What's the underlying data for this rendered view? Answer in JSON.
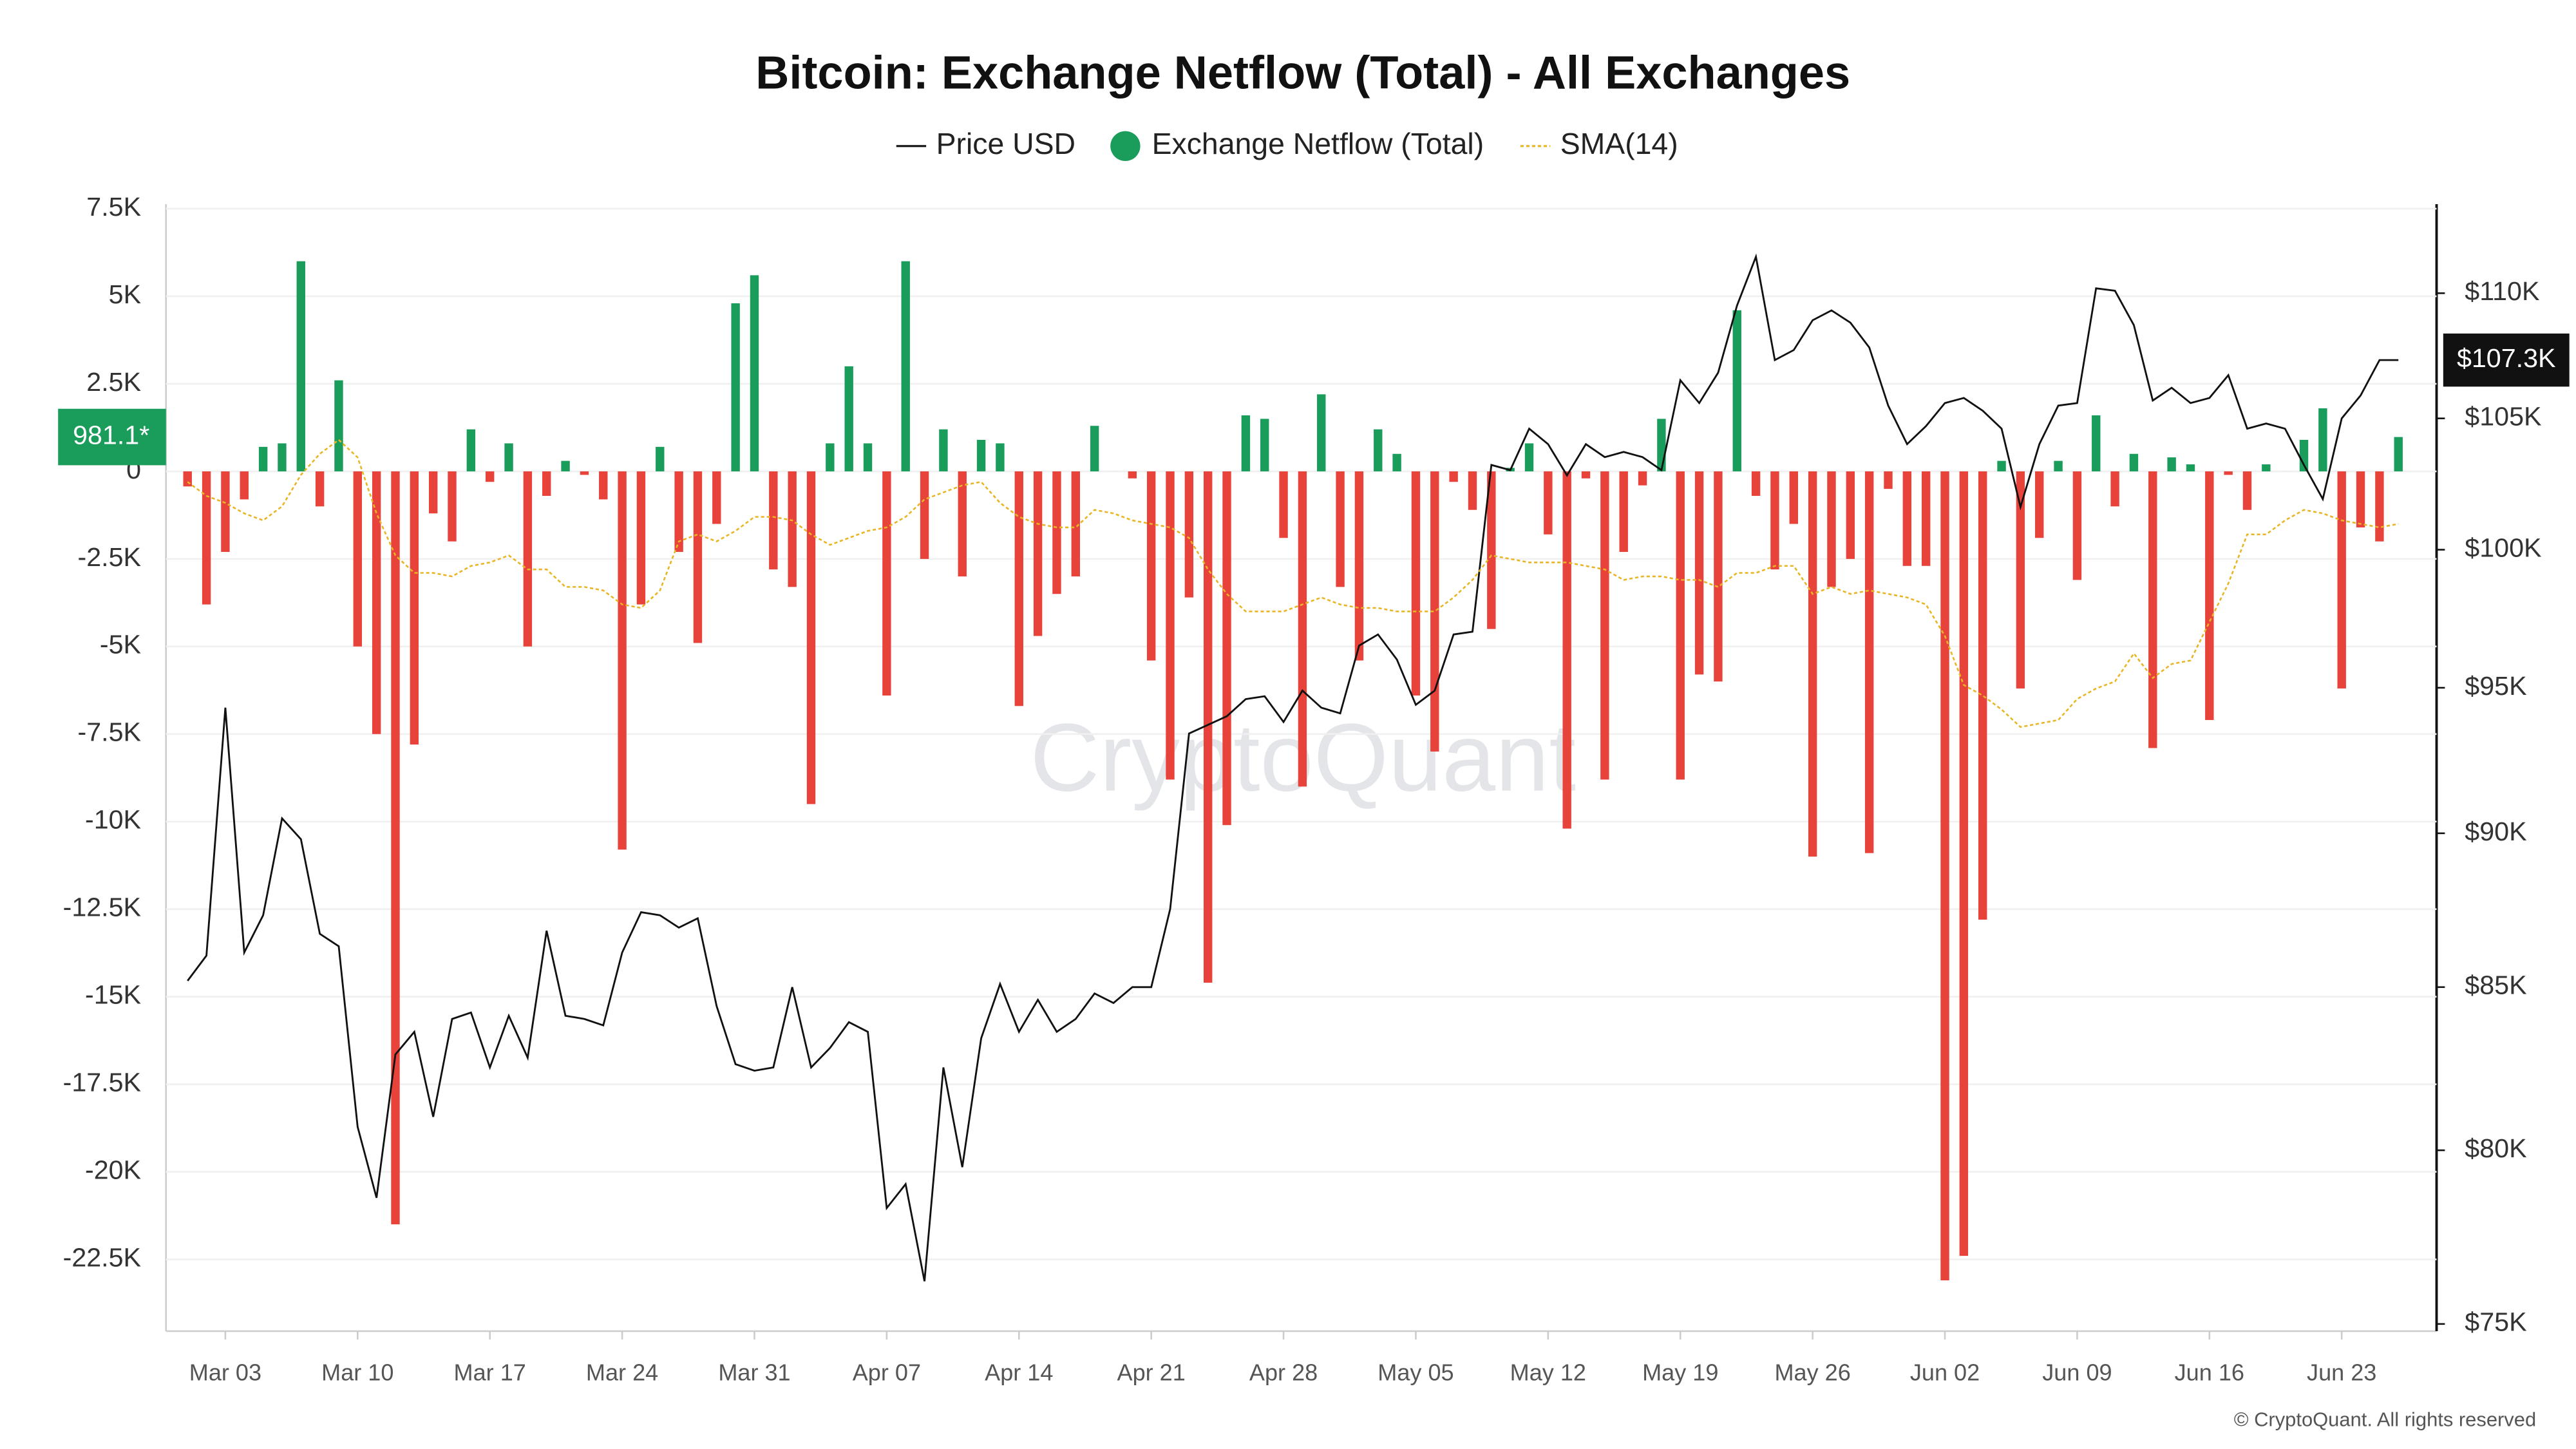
{
  "chart_data": {
    "type": "bar",
    "title": "Bitcoin: Exchange Netflow (Total) - All Exchanges",
    "watermark": "CryptoQuant",
    "copyright": "© CryptoQuant. All rights reserved",
    "categories": [
      null,
      null,
      "Mar 03",
      null,
      null,
      null,
      null,
      null,
      null,
      "Mar 10",
      null,
      null,
      null,
      null,
      null,
      null,
      "Mar 17",
      null,
      null,
      null,
      null,
      null,
      null,
      "Mar 24",
      null,
      null,
      null,
      null,
      null,
      null,
      "Mar 31",
      null,
      null,
      null,
      null,
      null,
      null,
      "Apr 07",
      null,
      null,
      null,
      null,
      null,
      null,
      "Apr 14",
      null,
      null,
      null,
      null,
      null,
      null,
      "Apr 21",
      null,
      null,
      null,
      null,
      null,
      null,
      "Apr 28",
      null,
      null,
      null,
      null,
      null,
      null,
      "May 05",
      null,
      null,
      null,
      null,
      null,
      null,
      "May 12",
      null,
      null,
      null,
      null,
      null,
      null,
      "May 19",
      null,
      null,
      null,
      null,
      null,
      null,
      "May 26",
      null,
      null,
      null,
      null,
      null,
      null,
      "Jun 02",
      null,
      null,
      null,
      null,
      null,
      null,
      "Jun 09",
      null,
      null,
      null,
      null,
      null,
      null,
      "Jun 16",
      null,
      null,
      null,
      null,
      null,
      null,
      "Jun 23",
      null,
      null,
      null
    ],
    "ylim": [
      -24550,
      7630
    ],
    "yticks": [
      {
        "value": 7500,
        "label": "7.5K"
      },
      {
        "value": 5000,
        "label": "5K"
      },
      {
        "value": 2500,
        "label": "2.5K"
      },
      0,
      {
        "value": -2500,
        "label": "-2.5K"
      },
      {
        "value": -5000,
        "label": "-5K"
      },
      {
        "value": -7500,
        "label": "-7.5K"
      },
      {
        "value": -10000,
        "label": "-10K"
      },
      {
        "value": -12500,
        "label": "-12.5K"
      },
      {
        "value": -15000,
        "label": "-15K"
      },
      {
        "value": -17500,
        "label": "-17.5K"
      },
      {
        "value": -20000,
        "label": "-20K"
      },
      {
        "value": -22500,
        "label": "-22.5K"
      }
    ],
    "y2lim": [
      74800,
      113700
    ],
    "y2log": true,
    "y2ticks": [
      {
        "value": 75000,
        "label": "$75K"
      },
      {
        "value": 80000,
        "label": "$80K"
      },
      {
        "value": 85000,
        "label": "$85K"
      },
      {
        "value": 90000,
        "label": "$90K"
      },
      {
        "value": 95000,
        "label": "$95K"
      },
      {
        "value": 100000,
        "label": "$100K"
      },
      {
        "value": 105000,
        "label": "$105K"
      },
      {
        "value": 110000,
        "label": "$110K"
      }
    ],
    "grid": true,
    "legend": "top",
    "series": [
      {
        "name": "Price USD",
        "type": "line",
        "axis": "y2",
        "color": "#111111",
        "current_label": "$107.3K",
        "values": [
          85200,
          86000,
          94300,
          86100,
          87300,
          90500,
          89800,
          86700,
          86300,
          80700,
          78600,
          82900,
          83600,
          81000,
          84000,
          84200,
          82500,
          84100,
          82800,
          86800,
          84100,
          84000,
          83800,
          86100,
          87400,
          87300,
          86900,
          87200,
          84400,
          82600,
          82400,
          82500,
          85000,
          82500,
          83100,
          83900,
          83600,
          78300,
          79000,
          76200,
          82500,
          79500,
          83400,
          85100,
          83600,
          84600,
          83600,
          84000,
          84800,
          84500,
          85000,
          85000,
          87500,
          93400,
          93700,
          94000,
          94600,
          94700,
          93800,
          94900,
          94300,
          94100,
          96500,
          96900,
          96000,
          94400,
          94900,
          96900,
          97000,
          103200,
          103000,
          104600,
          104000,
          102800,
          104000,
          103500,
          103700,
          103500,
          103000,
          106500,
          105600,
          106800,
          109500,
          111500,
          107300,
          107700,
          108900,
          109300,
          108800,
          107800,
          105500,
          104000,
          104700,
          105600,
          105800,
          105300,
          104600,
          101600,
          104000,
          105500,
          105600,
          110200,
          110100,
          108700,
          105700,
          106200,
          105600,
          105800,
          106700,
          104600,
          104800,
          104600,
          103200,
          101900,
          105000,
          105900,
          107300,
          107300
        ]
      },
      {
        "name": "Exchange Netflow (Total)",
        "type": "bar",
        "positive_color": "#1a9c5b",
        "negative_color": "#e8433a",
        "color": "#1a9c5b",
        "current_label": "981.1*",
        "values": [
          -430,
          -3800,
          -2300,
          -800,
          700,
          800,
          6000,
          -1000,
          2600,
          -5000,
          -7500,
          -21500,
          -7800,
          -1200,
          -2000,
          1200,
          -300,
          800,
          -5000,
          -700,
          300,
          -100,
          -800,
          -10800,
          -3800,
          700,
          -2300,
          -4900,
          -1500,
          4800,
          5600,
          -2800,
          -3300,
          -9500,
          800,
          3000,
          800,
          -6400,
          6000,
          -2500,
          1200,
          -3000,
          900,
          800,
          -6700,
          -4700,
          -3500,
          -3000,
          1300,
          0,
          -200,
          -5400,
          -8800,
          -3600,
          -14600,
          -10100,
          1600,
          1500,
          -1900,
          -9000,
          2200,
          -3300,
          -5400,
          1200,
          500,
          -6400,
          -8000,
          -300,
          -1100,
          -4500,
          100,
          800,
          -1800,
          -10200,
          -200,
          -8800,
          -2300,
          -400,
          1500,
          -8800,
          -5800,
          -6000,
          4600,
          -700,
          -2800,
          -1500,
          -11000,
          -3300,
          -2500,
          -10900,
          -500,
          -2700,
          -2700,
          -23100,
          -22400,
          -12800,
          300,
          -6200,
          -1900,
          300,
          -3100,
          1600,
          -1000,
          500,
          -7900,
          400,
          200,
          -7100,
          -100,
          -1100,
          200,
          0,
          900,
          1800,
          -6200,
          -1600,
          -2000,
          981.1
        ]
      },
      {
        "name": "SMA(14)",
        "type": "line",
        "dashed": true,
        "color": "#e8b524",
        "values": [
          -300,
          -700,
          -900,
          -1200,
          -1400,
          -1000,
          -100,
          500,
          900,
          400,
          -1200,
          -2400,
          -2900,
          -2900,
          -3000,
          -2700,
          -2600,
          -2400,
          -2800,
          -2800,
          -3300,
          -3300,
          -3400,
          -3800,
          -3900,
          -3400,
          -2000,
          -1800,
          -2000,
          -1700,
          -1300,
          -1300,
          -1400,
          -1800,
          -2100,
          -1900,
          -1700,
          -1600,
          -1300,
          -800,
          -600,
          -400,
          -300,
          -900,
          -1300,
          -1500,
          -1600,
          -1600,
          -1100,
          -1200,
          -1400,
          -1500,
          -1600,
          -1900,
          -2800,
          -3500,
          -4000,
          -4000,
          -4000,
          -3800,
          -3600,
          -3800,
          -3900,
          -3900,
          -4000,
          -4000,
          -4000,
          -3600,
          -3100,
          -2400,
          -2500,
          -2600,
          -2600,
          -2600,
          -2700,
          -2800,
          -3100,
          -3000,
          -3000,
          -3100,
          -3100,
          -3300,
          -2900,
          -2900,
          -2700,
          -2700,
          -3500,
          -3300,
          -3500,
          -3400,
          -3500,
          -3600,
          -3800,
          -4700,
          -6100,
          -6400,
          -6800,
          -7300,
          -7200,
          -7100,
          -6500,
          -6200,
          -6000,
          -5200,
          -5900,
          -5500,
          -5400,
          -4300,
          -3200,
          -1800,
          -1800,
          -1400,
          -1100,
          -1200,
          -1400,
          -1500,
          -1600,
          -1500
        ]
      }
    ]
  }
}
